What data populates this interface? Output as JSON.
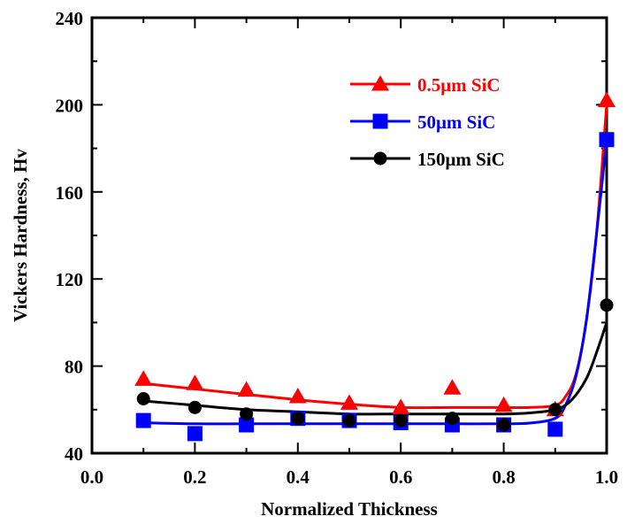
{
  "chart_data": {
    "type": "scatter",
    "xlabel": "Normalized Thickness",
    "ylabel": "Vickers Hardness, Hv",
    "xlim": [
      0.0,
      1.0
    ],
    "ylim": [
      40,
      240
    ],
    "xticks": [
      0.0,
      0.2,
      0.4,
      0.6,
      0.8,
      1.0
    ],
    "xtick_labels": [
      "0.0",
      "0.2",
      "0.4",
      "0.6",
      "0.8",
      "1.0"
    ],
    "yticks": [
      40,
      80,
      120,
      160,
      200,
      240
    ],
    "ytick_labels": [
      "40",
      "80",
      "120",
      "160",
      "200",
      "240"
    ],
    "grid": false,
    "legend_position": "top-right",
    "series": [
      {
        "name": "0.5μm SiC",
        "color": "#ff0000",
        "marker": "triangle",
        "x": [
          0.1,
          0.2,
          0.3,
          0.4,
          0.5,
          0.6,
          0.7,
          0.8,
          0.9,
          1.0
        ],
        "y": [
          74,
          72,
          69,
          66,
          63,
          61,
          70,
          62,
          60,
          202
        ],
        "fit_x": [
          0.1,
          0.2,
          0.3,
          0.4,
          0.5,
          0.6,
          0.7,
          0.8,
          0.85,
          0.9,
          0.92,
          0.94,
          0.96,
          0.98,
          1.0
        ],
        "fit_y": [
          72,
          69.5,
          67,
          64.5,
          62.5,
          61,
          61,
          61,
          61,
          62,
          66,
          76,
          100,
          140,
          200
        ]
      },
      {
        "name": "50μm SiC",
        "color": "#0000ff",
        "marker": "square",
        "x": [
          0.1,
          0.2,
          0.3,
          0.4,
          0.5,
          0.6,
          0.7,
          0.8,
          0.9,
          1.0
        ],
        "y": [
          55,
          49,
          53,
          56,
          55,
          54,
          53,
          53,
          51,
          184
        ],
        "fit_x": [
          0.1,
          0.2,
          0.3,
          0.4,
          0.5,
          0.6,
          0.7,
          0.8,
          0.85,
          0.9,
          0.92,
          0.94,
          0.96,
          0.98,
          1.0
        ],
        "fit_y": [
          54,
          53.5,
          53.5,
          53.5,
          53.5,
          53.5,
          53.5,
          53.5,
          53.8,
          56,
          62,
          75,
          100,
          140,
          184
        ]
      },
      {
        "name": "150μm SiC",
        "color": "#000000",
        "marker": "circle",
        "x": [
          0.1,
          0.2,
          0.3,
          0.4,
          0.5,
          0.6,
          0.7,
          0.8,
          0.9,
          1.0
        ],
        "y": [
          65,
          61,
          58,
          56,
          55,
          55,
          56,
          53,
          60,
          108
        ],
        "fit_x": [
          0.1,
          0.2,
          0.3,
          0.4,
          0.5,
          0.6,
          0.7,
          0.8,
          0.85,
          0.9,
          0.93,
          0.96,
          0.98,
          1.0
        ],
        "fit_y": [
          64,
          62,
          60,
          59,
          58,
          58,
          58,
          58,
          58.5,
          60,
          64,
          74,
          86,
          100
        ]
      }
    ]
  }
}
